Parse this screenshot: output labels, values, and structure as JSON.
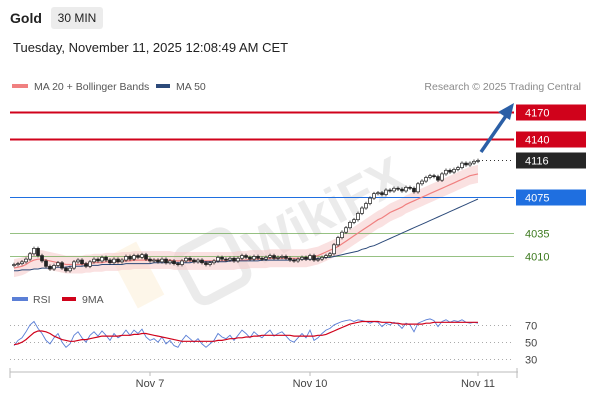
{
  "header": {
    "title": "Gold",
    "timeframe": "30 MIN",
    "datetime": "Tuesday, November 11, 2025 12:08:49 AM CET"
  },
  "legend": {
    "ma20_label": "MA 20 + Bollinger Bands",
    "ma50_label": "MA 50",
    "credit": "Research © 2025 Trading Central",
    "rsi_label": "RSI",
    "ma9_label": "9MA"
  },
  "colors": {
    "resistance": "#d0021b",
    "support_blue": "#1f6fe0",
    "support_green": "#6aa84f",
    "ma20": "#f08080",
    "ma50": "#2c4a7a",
    "rsi": "#5b7fd6",
    "ma9": "#d0021b",
    "candle": "#222222",
    "arrow": "#2b5fa6"
  },
  "watermark": "WikiFX",
  "chart_data": [
    {
      "type": "candlestick",
      "title": "",
      "xlabel": "",
      "ylabel": "",
      "x_tick_labels": [
        "Nov 7",
        "Nov 10",
        "Nov 11"
      ],
      "ylim": [
        3985,
        4180
      ],
      "levels": [
        {
          "label": "4170",
          "value": 4170,
          "kind": "resistance",
          "style": "filled-tag"
        },
        {
          "label": "4140",
          "value": 4140,
          "kind": "resistance",
          "style": "filled-tag"
        },
        {
          "label": "4116",
          "value": 4116,
          "kind": "last-price",
          "style": "filled-tag"
        },
        {
          "label": "4075",
          "value": 4075,
          "kind": "pivot",
          "style": "filled-tag"
        },
        {
          "label": "4035",
          "value": 4035,
          "kind": "support",
          "style": "text"
        },
        {
          "label": "4010",
          "value": 4010,
          "kind": "support",
          "style": "text"
        }
      ],
      "close": [
        4000,
        4001,
        4003,
        4006,
        4012,
        4018,
        4010,
        4004,
        3998,
        3995,
        3999,
        4002,
        3996,
        3993,
        3996,
        4003,
        4005,
        4001,
        3998,
        4003,
        4006,
        4004,
        4008,
        4005,
        4002,
        4006,
        4003,
        4005,
        4009,
        4006,
        4010,
        4008,
        4011,
        4006,
        4004,
        4005,
        4003,
        4006,
        4002,
        4004,
        4001,
        4000,
        4004,
        4007,
        4005,
        4003,
        4005,
        4002,
        4000,
        4002,
        4004,
        4008,
        4006,
        4005,
        4007,
        4004,
        4007,
        4010,
        4008,
        4006,
        4009,
        4007,
        4006,
        4008,
        4010,
        4007,
        4008,
        4009,
        4007,
        4005,
        4004,
        4006,
        4008,
        4006,
        4010,
        4005,
        4006,
        4008,
        4010,
        4012,
        4022,
        4030,
        4036,
        4041,
        4047,
        4050,
        4057,
        4063,
        4068,
        4074,
        4079,
        4080,
        4078,
        4083,
        4082,
        4085,
        4084,
        4082,
        4086,
        4085,
        4081,
        4090,
        4093,
        4097,
        4099,
        4098,
        4094,
        4101,
        4105,
        4103,
        4106,
        4108,
        4113,
        4111,
        4113,
        4115,
        4116
      ],
      "series": [
        {
          "name": "MA 20",
          "values": [
            3996,
            3997,
            3998,
            4000,
            4003,
            4005,
            4006,
            4006,
            4005,
            4004,
            4003,
            4002,
            4001,
            4000,
            4000,
            4000,
            4000,
            4000,
            4001,
            4001,
            4002,
            4002,
            4002,
            4003,
            4003,
            4003,
            4003,
            4004,
            4004,
            4004,
            4005,
            4005,
            4005,
            4005,
            4005,
            4005,
            4005,
            4005,
            4005,
            4005,
            4004,
            4004,
            4004,
            4004,
            4004,
            4004,
            4004,
            4004,
            4004,
            4004,
            4004,
            4004,
            4004,
            4004,
            4004,
            4004,
            4005,
            4005,
            4005,
            4006,
            4006,
            4006,
            4006,
            4006,
            4007,
            4007,
            4007,
            4007,
            4007,
            4007,
            4007,
            4007,
            4007,
            4007,
            4008,
            4009,
            4010,
            4012,
            4014,
            4016,
            4018,
            4020,
            4023,
            4026,
            4029,
            4032,
            4035,
            4038,
            4041,
            4044,
            4047,
            4050,
            4052,
            4055,
            4058,
            4060,
            4062,
            4064,
            4067,
            4069,
            4071,
            4073,
            4075,
            4077,
            4079,
            4081,
            4083,
            4085,
            4087,
            4089,
            4091,
            4093,
            4095,
            4097,
            4099,
            4100,
            4101
          ]
        },
        {
          "name": "MA 50",
          "values": [
            3993,
            3993,
            3994,
            3994,
            3994,
            3995,
            3995,
            3996,
            3996,
            3996,
            3997,
            3997,
            3997,
            3997,
            3998,
            3998,
            3998,
            3998,
            3999,
            3999,
            3999,
            3999,
            4000,
            4000,
            4000,
            4000,
            4000,
            4000,
            4001,
            4001,
            4001,
            4001,
            4001,
            4001,
            4001,
            4002,
            4002,
            4002,
            4002,
            4002,
            4002,
            4002,
            4002,
            4002,
            4002,
            4003,
            4003,
            4003,
            4003,
            4003,
            4003,
            4003,
            4003,
            4003,
            4004,
            4004,
            4004,
            4004,
            4004,
            4004,
            4004,
            4004,
            4005,
            4005,
            4005,
            4005,
            4005,
            4005,
            4005,
            4005,
            4005,
            4006,
            4006,
            4006,
            4006,
            4006,
            4007,
            4007,
            4008,
            4008,
            4009,
            4010,
            4011,
            4012,
            4013,
            4014,
            4015,
            4017,
            4018,
            4020,
            4021,
            4023,
            4025,
            4027,
            4029,
            4031,
            4033,
            4035,
            4037,
            4039,
            4041,
            4043,
            4045,
            4047,
            4049,
            4051,
            4053,
            4055,
            4057,
            4059,
            4061,
            4063,
            4065,
            4067,
            4069,
            4071,
            4073
          ]
        }
      ]
    },
    {
      "type": "line",
      "title": "",
      "y_tick_labels": [
        "70",
        "50",
        "30"
      ],
      "ylim": [
        20,
        85
      ],
      "series": [
        {
          "name": "RSI",
          "values": [
            46,
            52,
            55,
            62,
            70,
            74,
            66,
            60,
            52,
            48,
            55,
            60,
            50,
            44,
            48,
            58,
            62,
            55,
            50,
            58,
            62,
            57,
            63,
            58,
            52,
            60,
            55,
            58,
            64,
            58,
            64,
            60,
            65,
            56,
            52,
            54,
            50,
            56,
            48,
            52,
            46,
            44,
            52,
            58,
            54,
            50,
            54,
            48,
            44,
            48,
            52,
            60,
            56,
            54,
            58,
            52,
            58,
            64,
            60,
            55,
            62,
            58,
            55,
            60,
            64,
            57,
            60,
            62,
            57,
            52,
            50,
            55,
            60,
            55,
            64,
            52,
            55,
            60,
            64,
            66,
            70,
            72,
            74,
            75,
            76,
            74,
            76,
            75,
            74,
            72,
            74,
            73,
            68,
            72,
            70,
            73,
            71,
            66,
            72,
            70,
            62,
            72,
            74,
            76,
            77,
            75,
            68,
            74,
            76,
            73,
            75,
            74,
            76,
            73,
            72,
            73,
            72
          ]
        },
        {
          "name": "9MA",
          "values": [
            47,
            48,
            50,
            53,
            57,
            61,
            63,
            63,
            62,
            60,
            57,
            55,
            53,
            52,
            51,
            51,
            52,
            53,
            53,
            54,
            55,
            56,
            57,
            57,
            57,
            57,
            57,
            58,
            58,
            58,
            59,
            59,
            60,
            60,
            59,
            58,
            57,
            56,
            55,
            54,
            53,
            52,
            51,
            51,
            51,
            51,
            51,
            51,
            51,
            51,
            51,
            52,
            52,
            53,
            54,
            54,
            55,
            55,
            56,
            56,
            57,
            57,
            58,
            58,
            58,
            58,
            58,
            58,
            58,
            58,
            57,
            57,
            57,
            57,
            57,
            57,
            58,
            58,
            59,
            61,
            63,
            65,
            67,
            69,
            71,
            72,
            73,
            74,
            74,
            74,
            74,
            74,
            73,
            73,
            73,
            72,
            72,
            71,
            71,
            71,
            71,
            71,
            71,
            72,
            72,
            73,
            73,
            73,
            73,
            73,
            73,
            73,
            73,
            73,
            73,
            73,
            73
          ]
        }
      ]
    }
  ]
}
